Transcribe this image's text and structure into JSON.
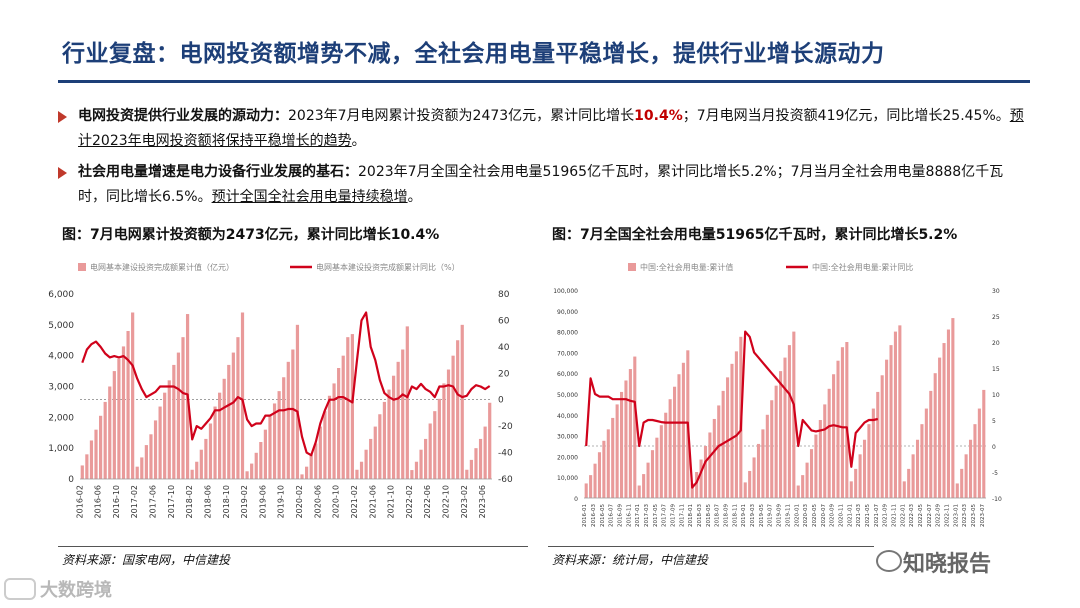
{
  "title": "行业复盘：电网投资额增势不减，全社会用电量平稳增长，提供行业增长源动力",
  "bullets": [
    {
      "head": "电网投资提供行业发展的源动力：",
      "t1": "2023年7月电网累计投资额为2473亿元，累计同比增长",
      "red": "10.4%",
      "t2": "；7月电网当月投资额419亿元，同比增长25.45%。",
      "ul": "预计2023年电网投资额将保持平稳增长的趋势",
      "end": "。"
    },
    {
      "head": "社会用电量增速是电力设备行业发展的基石：",
      "t1": "2023年7月全国全社会用电量51965亿千瓦时，累计同比增长5.2%；7月当月全社会用电量8888亿千瓦时，同比增长6.5%。",
      "ul": "预计全国全社会用电量持续稳增",
      "end": "。"
    }
  ],
  "fig1_title": "图：7月电网累计投资额为2473亿元，累计同比增长10.4%",
  "fig2_title": "图：7月全国全社会用电量51965亿千瓦时，累计同比增长5.2%",
  "source1": "资料来源：国家电网，中信建投",
  "source2": "资料来源：统计局，中信建投",
  "watermark1": "知晓报告",
  "watermark2": "大数跨境",
  "colors": {
    "bar": "#e99a9a",
    "line": "#d0021b",
    "title": "#1d3f78"
  },
  "chart_data": [
    {
      "type": "bar+line",
      "legend": [
        "电网基本建设投资完成额累计值（亿元）",
        "电网基本建设投资完成额累计同比（%）"
      ],
      "legend_position": "top",
      "x_tick_labels": [
        "2016-02",
        "2016-06",
        "2016-10",
        "2017-02",
        "2017-06",
        "2017-10",
        "2018-02",
        "2018-06",
        "2018-10",
        "2019-02",
        "2019-06",
        "2019-10",
        "2020-02",
        "2020-06",
        "2020-10",
        "2021-02",
        "2021-06",
        "2021-10",
        "2022-02",
        "2022-06",
        "2022-10",
        "2023-02",
        "2023-06"
      ],
      "y_left_ticks": [
        "0",
        "1,000",
        "2,000",
        "3,000",
        "4,000",
        "5,000",
        "6,000"
      ],
      "y_right_ticks": [
        "-60",
        "-40",
        "-20",
        "0",
        "20",
        "40",
        "60",
        "80"
      ],
      "ylim_left": [
        0,
        6000
      ],
      "ylim_right": [
        -60,
        80
      ],
      "series": [
        {
          "name": "电网基本建设投资完成额累计值（亿元）",
          "axis": "left",
          "values": [
            440,
            800,
            1250,
            1600,
            2050,
            2500,
            3000,
            3500,
            3900,
            4300,
            4800,
            5400,
            400,
            700,
            1100,
            1450,
            1900,
            2350,
            2800,
            3200,
            3700,
            4100,
            4600,
            5350,
            300,
            560,
            950,
            1300,
            1800,
            2350,
            2800,
            3250,
            3700,
            4100,
            4600,
            5400,
            250,
            500,
            850,
            1200,
            1600,
            2050,
            2450,
            2850,
            3300,
            3800,
            4200,
            5000,
            150,
            400,
            800,
            1150,
            1700,
            2200,
            2700,
            3100,
            3600,
            4000,
            4600,
            4700,
            300,
            560,
            950,
            1300,
            1700,
            2100,
            2500,
            2900,
            3350,
            3800,
            4200,
            4950,
            290,
            560,
            950,
            1300,
            1800,
            2200,
            2600,
            3100,
            3550,
            4000,
            4500,
            5000,
            300,
            620,
            1000,
            1300,
            1700,
            2473
          ]
        },
        {
          "name": "电网基本建设投资完成额累计同比（%）",
          "axis": "right",
          "values": [
            28,
            38,
            42,
            44,
            40,
            35,
            32,
            33,
            32,
            33,
            30,
            26,
            16,
            8,
            2,
            4,
            6,
            10,
            10,
            10,
            10,
            8,
            5,
            4,
            -30,
            -20,
            -22,
            -18,
            -14,
            -8,
            -8,
            -6,
            -4,
            -2,
            2,
            0,
            -15,
            -20,
            -18,
            -18,
            -12,
            -12,
            -10,
            -8,
            -8,
            -7,
            -7,
            -9,
            -28,
            -40,
            -42,
            -32,
            -18,
            -8,
            0,
            0,
            2,
            2,
            0,
            -2,
            30,
            60,
            66,
            40,
            30,
            15,
            5,
            2,
            0,
            1,
            4,
            2,
            10,
            8,
            12,
            8,
            6,
            2,
            10,
            10,
            11,
            10,
            4,
            2,
            3,
            8,
            11,
            10,
            8,
            10.4
          ]
        }
      ]
    },
    {
      "type": "bar+line",
      "legend": [
        "中国:全社会用电量:累计值",
        "中国:全社会用电量:累计同比"
      ],
      "legend_position": "top",
      "x_tick_labels": [
        "2016-01",
        "2016-03",
        "2016-05",
        "2016-07",
        "2016-09",
        "2016-11",
        "2017-01",
        "2017-03",
        "2017-05",
        "2017-07",
        "2017-09",
        "2017-11",
        "2018-01",
        "2018-03",
        "2018-05",
        "2018-07",
        "2018-09",
        "2018-11",
        "2019-01",
        "2019-03",
        "2019-05",
        "2019-07",
        "2019-09",
        "2019-11",
        "2020-01",
        "2020-03",
        "2020-05",
        "2020-07",
        "2020-09",
        "2020-11",
        "2021-01",
        "2021-03",
        "2021-05",
        "2021-07",
        "2021-09",
        "2021-11",
        "2022-01",
        "2022-03",
        "2022-05",
        "2022-07",
        "2022-09",
        "2022-11",
        "2023-01",
        "2023-03",
        "2023-05",
        "2023-07"
      ],
      "y_left_ticks": [
        "0",
        "10,000",
        "20,000",
        "30,000",
        "40,000",
        "50,000",
        "60,000",
        "70,000",
        "80,000",
        "90,000",
        "100,000"
      ],
      "y_right_ticks": [
        "-10",
        "-5",
        "0",
        "5",
        "10",
        "15",
        "20",
        "25",
        "30"
      ],
      "ylim_left": [
        0,
        100000
      ],
      "ylim_right": [
        -10,
        30
      ],
      "series": [
        {
          "name": "中国:全社会用电量:累计值",
          "axis": "left",
          "values": [
            7000,
            11000,
            16500,
            22000,
            27500,
            33000,
            38500,
            45000,
            51000,
            56500,
            62000,
            68000,
            6000,
            11500,
            17000,
            23000,
            29000,
            35000,
            41000,
            47500,
            53500,
            59500,
            65000,
            71000,
            7000,
            12500,
            18500,
            25000,
            31500,
            38000,
            44500,
            51500,
            58000,
            64500,
            70500,
            77500,
            7500,
            13000,
            19500,
            26000,
            33000,
            40000,
            47000,
            54000,
            61000,
            67500,
            73500,
            80000,
            6000,
            11000,
            17000,
            23500,
            30500,
            37500,
            45000,
            52500,
            59500,
            66000,
            72500,
            75000,
            8000,
            14000,
            21000,
            28000,
            35500,
            43000,
            51000,
            59000,
            66500,
            73500,
            80000,
            83000,
            8000,
            14000,
            21000,
            28000,
            35500,
            43000,
            51500,
            60000,
            67500,
            74500,
            81000,
            86500,
            7000,
            14000,
            21000,
            28000,
            35500,
            43000,
            51965
          ]
        },
        {
          "name": "中国:全社会用电量:累计同比",
          "axis": "right",
          "values": [
            0,
            13,
            10,
            9.5,
            9.5,
            9.5,
            9,
            9,
            9,
            9,
            8.7,
            8.5,
            0,
            4.5,
            5,
            5,
            4.8,
            4.6,
            4.5,
            4.5,
            4.5,
            4.5,
            4.5,
            4.5,
            -8,
            -7,
            -5,
            -3,
            -2,
            -1,
            0,
            0.5,
            1,
            1.5,
            2,
            3,
            22,
            21,
            18,
            17,
            16,
            15,
            14,
            13,
            12,
            11,
            10,
            8,
            0,
            5,
            4,
            3,
            2.8,
            3,
            3.2,
            3.8,
            4,
            3.8,
            3.6,
            3.6,
            -4,
            2.5,
            3.5,
            4.5,
            5,
            5,
            5.2
          ]
        }
      ]
    }
  ]
}
